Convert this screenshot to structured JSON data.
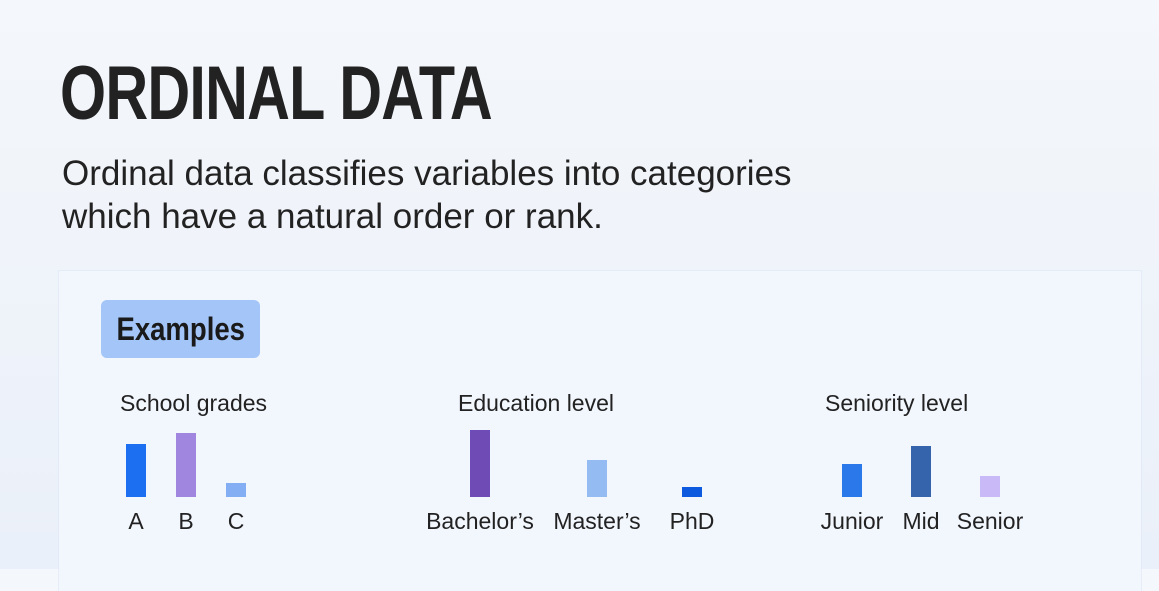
{
  "title": "ORDINAL DATA",
  "subtitle_line1": "Ordinal data classifies variables into categories",
  "subtitle_line2": "which have a natural order or rank.",
  "examples_label": "Examples",
  "chart_data": [
    {
      "type": "bar",
      "title": "School grades",
      "categories": [
        "A",
        "B",
        "C"
      ],
      "values": [
        53,
        64,
        14
      ],
      "colors": [
        "#1c6ff0",
        "#a186df",
        "#84aef4"
      ],
      "ylim": [
        0,
        70
      ]
    },
    {
      "type": "bar",
      "title": "Education level",
      "categories": [
        "Bachelor’s",
        "Master’s",
        "PhD"
      ],
      "values": [
        67,
        37,
        10
      ],
      "colors": [
        "#6e4bb5",
        "#94bbf2",
        "#0d5adf"
      ],
      "ylim": [
        0,
        70
      ]
    },
    {
      "type": "bar",
      "title": "Seniority level",
      "categories": [
        "Junior",
        "Mid",
        "Senior"
      ],
      "values": [
        33,
        51,
        21
      ],
      "colors": [
        "#2a78ea",
        "#3564ad",
        "#c9b9f6"
      ],
      "ylim": [
        0,
        70
      ]
    }
  ]
}
